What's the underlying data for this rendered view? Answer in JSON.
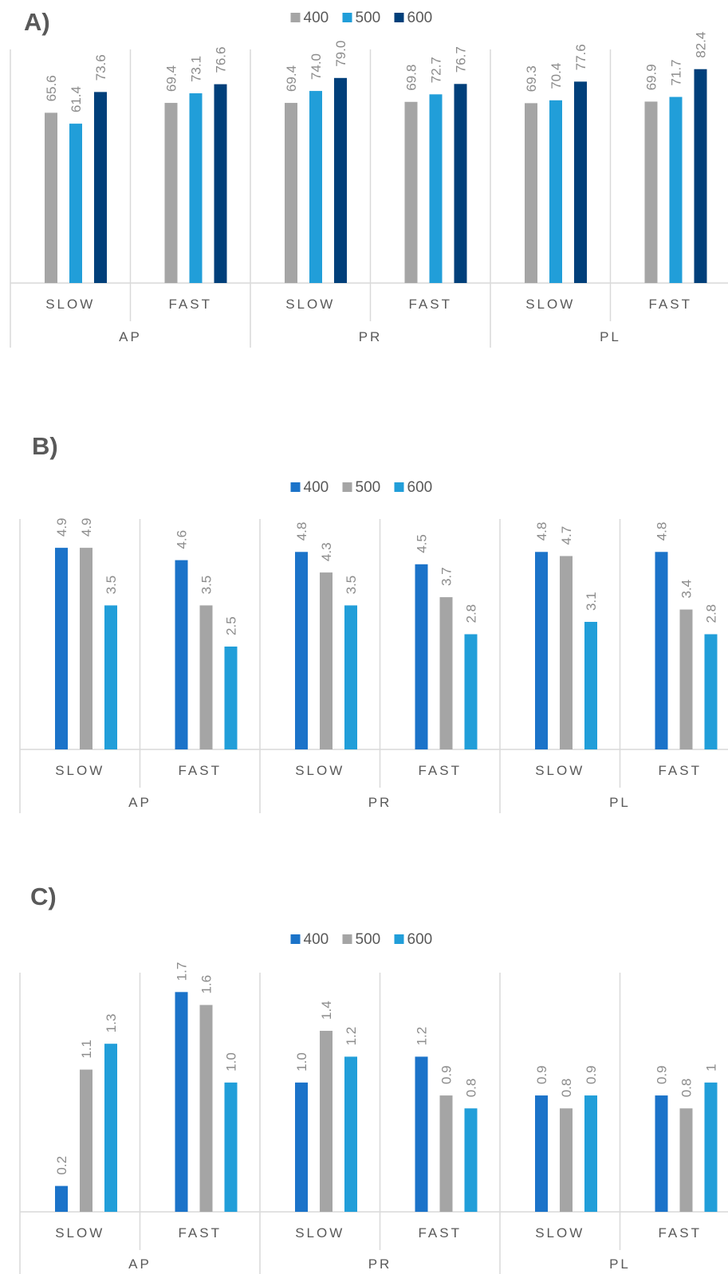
{
  "chart_data": [
    {
      "panel_label": "A)",
      "type": "bar",
      "legend_position": "top",
      "series": [
        {
          "name": "400",
          "color": "#a5a5a5",
          "values": [
            65.6,
            69.4,
            69.4,
            69.8,
            69.3,
            69.9
          ],
          "labels": [
            "65.6",
            "69.4",
            "69.4",
            "69.8",
            "69.3",
            "69.9"
          ]
        },
        {
          "name": "500",
          "color": "#219ed9",
          "values": [
            61.4,
            73.1,
            74.0,
            72.7,
            70.4,
            71.7
          ],
          "labels": [
            "61.4",
            "73.1",
            "74.0",
            "72.7",
            "70.4",
            "71.7"
          ]
        },
        {
          "name": "600",
          "color": "#003f7a",
          "values": [
            73.6,
            76.6,
            79.0,
            76.7,
            77.6,
            82.4
          ],
          "labels": [
            "73.6",
            "76.6",
            "79.0",
            "76.7",
            "77.6",
            "82.4"
          ]
        }
      ],
      "groups": [
        {
          "name": "AP",
          "categories": [
            "SLOW",
            "FAST"
          ]
        },
        {
          "name": "PR",
          "categories": [
            "SLOW",
            "FAST"
          ]
        },
        {
          "name": "PL",
          "categories": [
            "SLOW",
            "FAST"
          ]
        }
      ],
      "ylim": [
        0,
        90
      ],
      "grid": false
    },
    {
      "panel_label": "B)",
      "type": "bar",
      "legend_position": "top",
      "series": [
        {
          "name": "400",
          "color": "#1b73c9",
          "values": [
            4.9,
            4.6,
            4.8,
            4.5,
            4.8,
            4.8
          ],
          "labels": [
            "4.9",
            "4.6",
            "4.8",
            "4.5",
            "4.8",
            "4.8"
          ]
        },
        {
          "name": "500",
          "color": "#a5a5a5",
          "values": [
            4.9,
            3.5,
            4.3,
            3.7,
            4.7,
            3.4
          ],
          "labels": [
            "4.9",
            "3.5",
            "4.3",
            "3.7",
            "4.7",
            "3.4"
          ]
        },
        {
          "name": "600",
          "color": "#219ed9",
          "values": [
            3.5,
            2.5,
            3.5,
            2.8,
            3.1,
            2.8
          ],
          "labels": [
            "3.5",
            "2.5",
            "3.5",
            "2.8",
            "3.1",
            "2.8"
          ]
        }
      ],
      "groups": [
        {
          "name": "AP",
          "categories": [
            "SLOW",
            "FAST"
          ]
        },
        {
          "name": "PR",
          "categories": [
            "SLOW",
            "FAST"
          ]
        },
        {
          "name": "PL",
          "categories": [
            "SLOW",
            "FAST"
          ]
        }
      ],
      "ylim": [
        0,
        5.6
      ],
      "grid": false
    },
    {
      "panel_label": "C)",
      "type": "bar",
      "legend_position": "top",
      "series": [
        {
          "name": "400",
          "color": "#1b73c9",
          "values": [
            0.2,
            1.7,
            1.0,
            1.2,
            0.9,
            0.9
          ],
          "labels": [
            "0.2",
            "1.7",
            "1.0",
            "1.2",
            "0.9",
            "0.9"
          ]
        },
        {
          "name": "500",
          "color": "#a5a5a5",
          "values": [
            1.1,
            1.6,
            1.4,
            0.9,
            0.8,
            0.8
          ],
          "labels": [
            "1.1",
            "1.6",
            "1.4",
            "0.9",
            "0.8",
            "0.8"
          ]
        },
        {
          "name": "600",
          "color": "#219ed9",
          "values": [
            1.3,
            1.0,
            1.2,
            0.8,
            0.9,
            1.0
          ],
          "labels": [
            "1.3",
            "1.0",
            "1.2",
            "0.8",
            "0.9",
            "1"
          ]
        }
      ],
      "groups": [
        {
          "name": "AP",
          "categories": [
            "SLOW",
            "FAST"
          ]
        },
        {
          "name": "PR",
          "categories": [
            "SLOW",
            "FAST"
          ]
        },
        {
          "name": "PL",
          "categories": [
            "SLOW",
            "FAST"
          ]
        }
      ],
      "ylim": [
        0,
        1.85
      ],
      "grid": false
    }
  ]
}
